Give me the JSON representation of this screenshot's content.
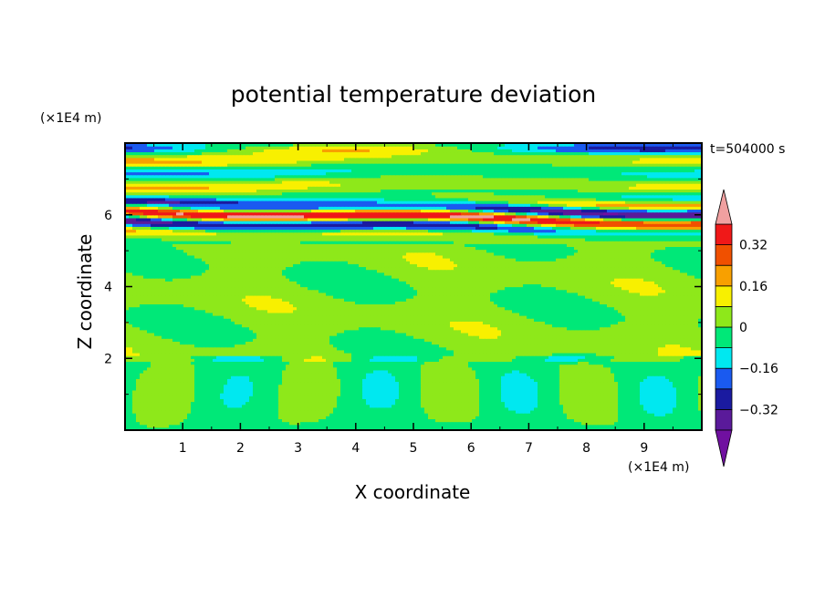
{
  "chart_data": {
    "type": "heatmap",
    "title": "potential temperature deviation",
    "xlabel": "X coordinate",
    "ylabel": "Z coordinate",
    "x_unit": "(×1E4 m)",
    "y_unit": "(×1E4 m)",
    "time_label": "t=504000 s",
    "xlim": [
      0,
      10
    ],
    "ylim": [
      0,
      8
    ],
    "x_ticks": [
      1,
      2,
      3,
      4,
      5,
      6,
      7,
      8,
      9
    ],
    "y_ticks": [
      2,
      4,
      6
    ],
    "colorbar": {
      "levels": [
        -0.4,
        -0.32,
        -0.24,
        -0.16,
        -0.08,
        0,
        0.08,
        0.16,
        0.24,
        0.32,
        0.4
      ],
      "labels": [
        "0.32",
        "0.16",
        "0",
        "-0.16",
        "-0.32"
      ],
      "label_values": [
        0.32,
        0.16,
        0,
        -0.16,
        -0.32
      ],
      "colors": [
        "#5a1a9a",
        "#1a1aa0",
        "#1a5af0",
        "#00e8f0",
        "#00e878",
        "#8ee81a",
        "#f8f000",
        "#f8a000",
        "#f05000",
        "#f01818"
      ],
      "over_color": "#f0a0a0",
      "under_color": "#7010a0"
    }
  }
}
